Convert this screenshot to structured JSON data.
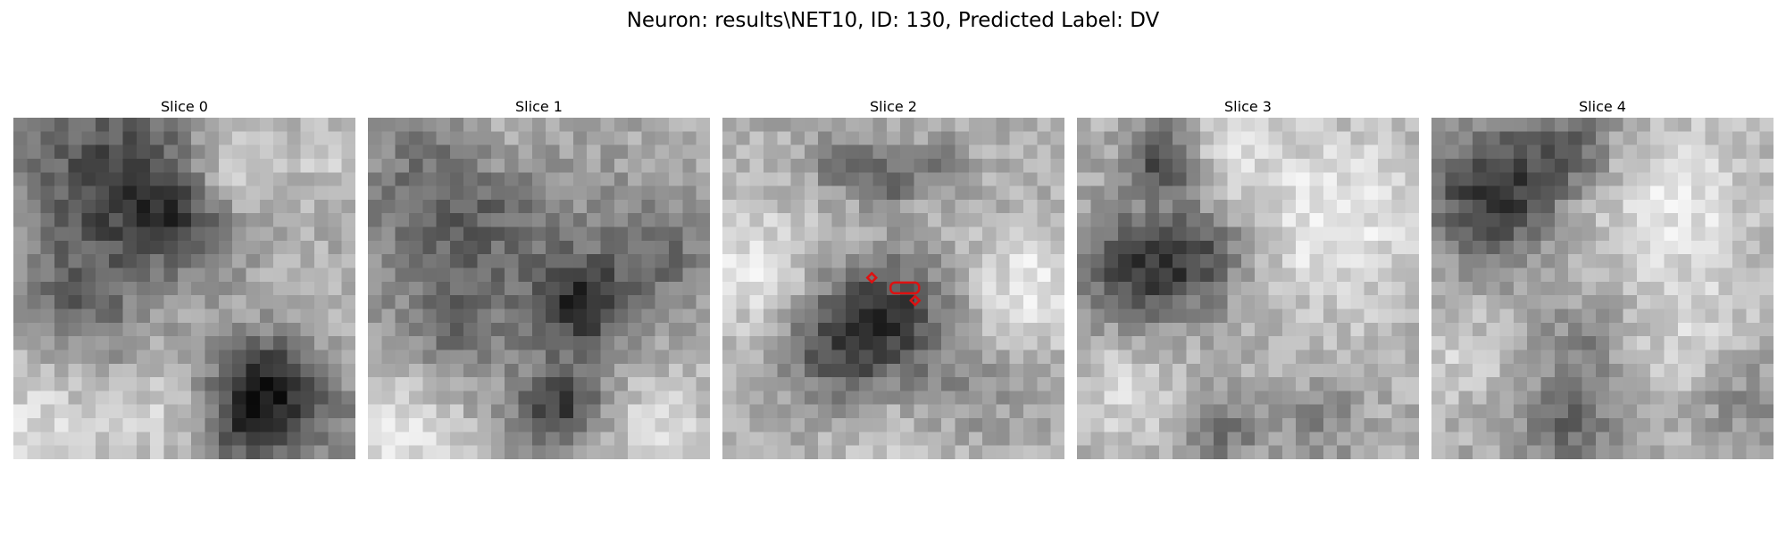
{
  "figure": {
    "title": "Neuron: results\\NET10, ID: 130, Predicted Label: DV",
    "grid_size": 25,
    "colormap": "gray"
  },
  "panels": [
    {
      "title": "Slice 0",
      "dark_spots": [
        [
          0.28,
          0.18,
          0.2,
          0.7
        ],
        [
          0.5,
          0.28,
          0.12,
          0.55
        ],
        [
          0.2,
          0.55,
          0.12,
          0.4
        ],
        [
          0.74,
          0.78,
          0.1,
          0.85
        ],
        [
          0.66,
          0.92,
          0.1,
          0.6
        ],
        [
          0.9,
          0.88,
          0.1,
          0.35
        ]
      ],
      "light_spots": [
        [
          0.62,
          0.16,
          0.09,
          0.75
        ],
        [
          0.06,
          0.92,
          0.14,
          0.45
        ],
        [
          0.45,
          0.88,
          0.1,
          0.35
        ],
        [
          0.92,
          0.1,
          0.08,
          0.3
        ]
      ],
      "seed": 11
    },
    {
      "title": "Slice 1",
      "dark_spots": [
        [
          0.3,
          0.22,
          0.22,
          0.62
        ],
        [
          0.62,
          0.55,
          0.1,
          0.85
        ],
        [
          0.56,
          0.85,
          0.09,
          0.8
        ],
        [
          0.85,
          0.4,
          0.12,
          0.45
        ],
        [
          0.25,
          0.62,
          0.12,
          0.35
        ]
      ],
      "light_spots": [
        [
          0.4,
          0.06,
          0.12,
          0.55
        ],
        [
          0.1,
          0.92,
          0.12,
          0.55
        ],
        [
          0.85,
          0.93,
          0.12,
          0.45
        ]
      ],
      "seed": 23
    },
    {
      "title": "Slice 2",
      "dark_spots": [
        [
          0.36,
          0.14,
          0.06,
          0.5
        ],
        [
          0.48,
          0.18,
          0.05,
          0.55
        ],
        [
          0.62,
          0.14,
          0.05,
          0.5
        ],
        [
          0.36,
          0.65,
          0.13,
          0.8
        ],
        [
          0.52,
          0.56,
          0.11,
          0.55
        ],
        [
          0.7,
          0.8,
          0.12,
          0.25
        ]
      ],
      "light_spots": [
        [
          0.1,
          0.45,
          0.14,
          0.55
        ],
        [
          0.9,
          0.5,
          0.12,
          0.6
        ],
        [
          0.5,
          0.95,
          0.15,
          0.3
        ]
      ],
      "seed": 37
    },
    {
      "title": "Slice 3",
      "dark_spots": [
        [
          0.25,
          0.12,
          0.07,
          0.75
        ],
        [
          0.18,
          0.45,
          0.12,
          0.8
        ],
        [
          0.38,
          0.4,
          0.1,
          0.55
        ],
        [
          0.42,
          0.92,
          0.09,
          0.4
        ],
        [
          0.72,
          0.88,
          0.08,
          0.3
        ]
      ],
      "light_spots": [
        [
          0.75,
          0.3,
          0.2,
          0.6
        ],
        [
          0.45,
          0.1,
          0.08,
          0.4
        ],
        [
          0.15,
          0.8,
          0.12,
          0.4
        ]
      ],
      "seed": 41
    },
    {
      "title": "Slice 4",
      "dark_spots": [
        [
          0.18,
          0.22,
          0.13,
          0.9
        ],
        [
          0.42,
          0.08,
          0.1,
          0.5
        ],
        [
          0.45,
          0.65,
          0.1,
          0.3
        ],
        [
          0.4,
          0.9,
          0.1,
          0.5
        ],
        [
          0.9,
          0.82,
          0.09,
          0.3
        ]
      ],
      "light_spots": [
        [
          0.7,
          0.25,
          0.18,
          0.55
        ],
        [
          0.75,
          0.65,
          0.14,
          0.35
        ],
        [
          0.08,
          0.7,
          0.1,
          0.3
        ]
      ],
      "seed": 59
    }
  ],
  "annotation": {
    "panel_index": 2,
    "color": "#dd1111",
    "points": [
      [
        0.4367,
        0.4633
      ],
      [
        0.5333,
        0.4933
      ],
      [
        0.5633,
        0.53
      ]
    ]
  }
}
